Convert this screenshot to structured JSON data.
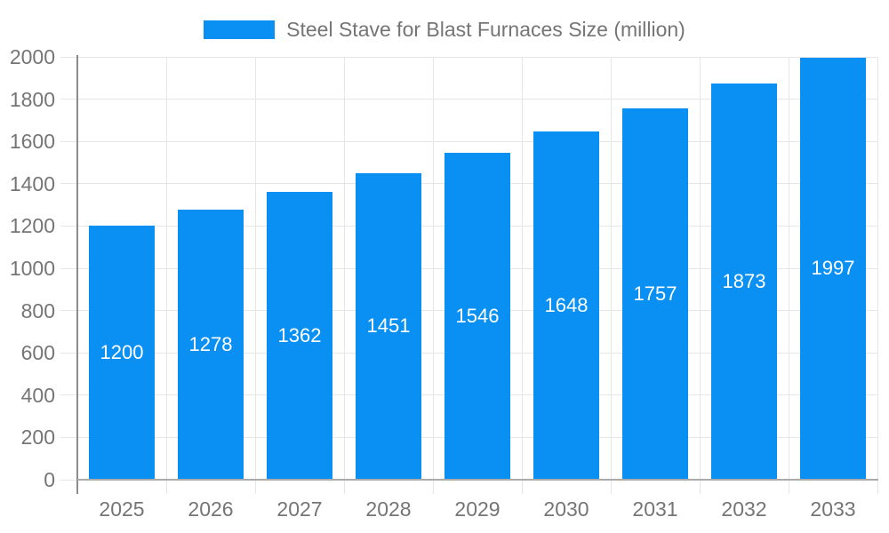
{
  "legend": {
    "label": "Steel Stave for Blast Furnaces Size (million)"
  },
  "chart_data": {
    "type": "bar",
    "title": "Steel Stave for Blast Furnaces Size (million)",
    "categories": [
      "2025",
      "2026",
      "2027",
      "2028",
      "2029",
      "2030",
      "2031",
      "2032",
      "2033"
    ],
    "values": [
      1200,
      1278,
      1362,
      1451,
      1546,
      1648,
      1757,
      1873,
      1997
    ],
    "xlabel": "",
    "ylabel": "",
    "ylim": [
      0,
      2000
    ],
    "yticks": [
      0,
      200,
      400,
      600,
      800,
      1000,
      1200,
      1400,
      1600,
      1800,
      2000
    ],
    "grid": true,
    "legend_position": "top-center",
    "bar_labels_inside": true,
    "colors": {
      "bar": "#0a90f2",
      "bar_label": "#ffffff",
      "axis_text": "#757575",
      "legend_text": "#757575",
      "grid_line": "#e6e6e6",
      "axis_line_y": "#8c8c8c",
      "axis_line_x": "#aaaaaa",
      "background": "#ffffff"
    }
  }
}
